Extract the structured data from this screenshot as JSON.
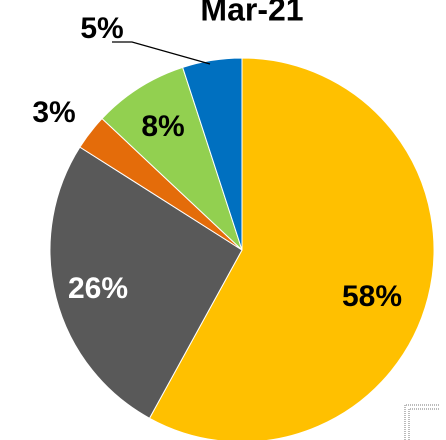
{
  "chart_data": {
    "type": "pie",
    "title": "Mar-21",
    "categories": [
      null,
      null,
      null,
      null,
      null
    ],
    "values": [
      58,
      26,
      3,
      8,
      5
    ],
    "value_labels": [
      "58%",
      "26%",
      "3%",
      "8%",
      "5%"
    ],
    "colors": [
      "#FFC000",
      "#595959",
      "#E46C0A",
      "#92D050",
      "#0070C0"
    ]
  }
}
